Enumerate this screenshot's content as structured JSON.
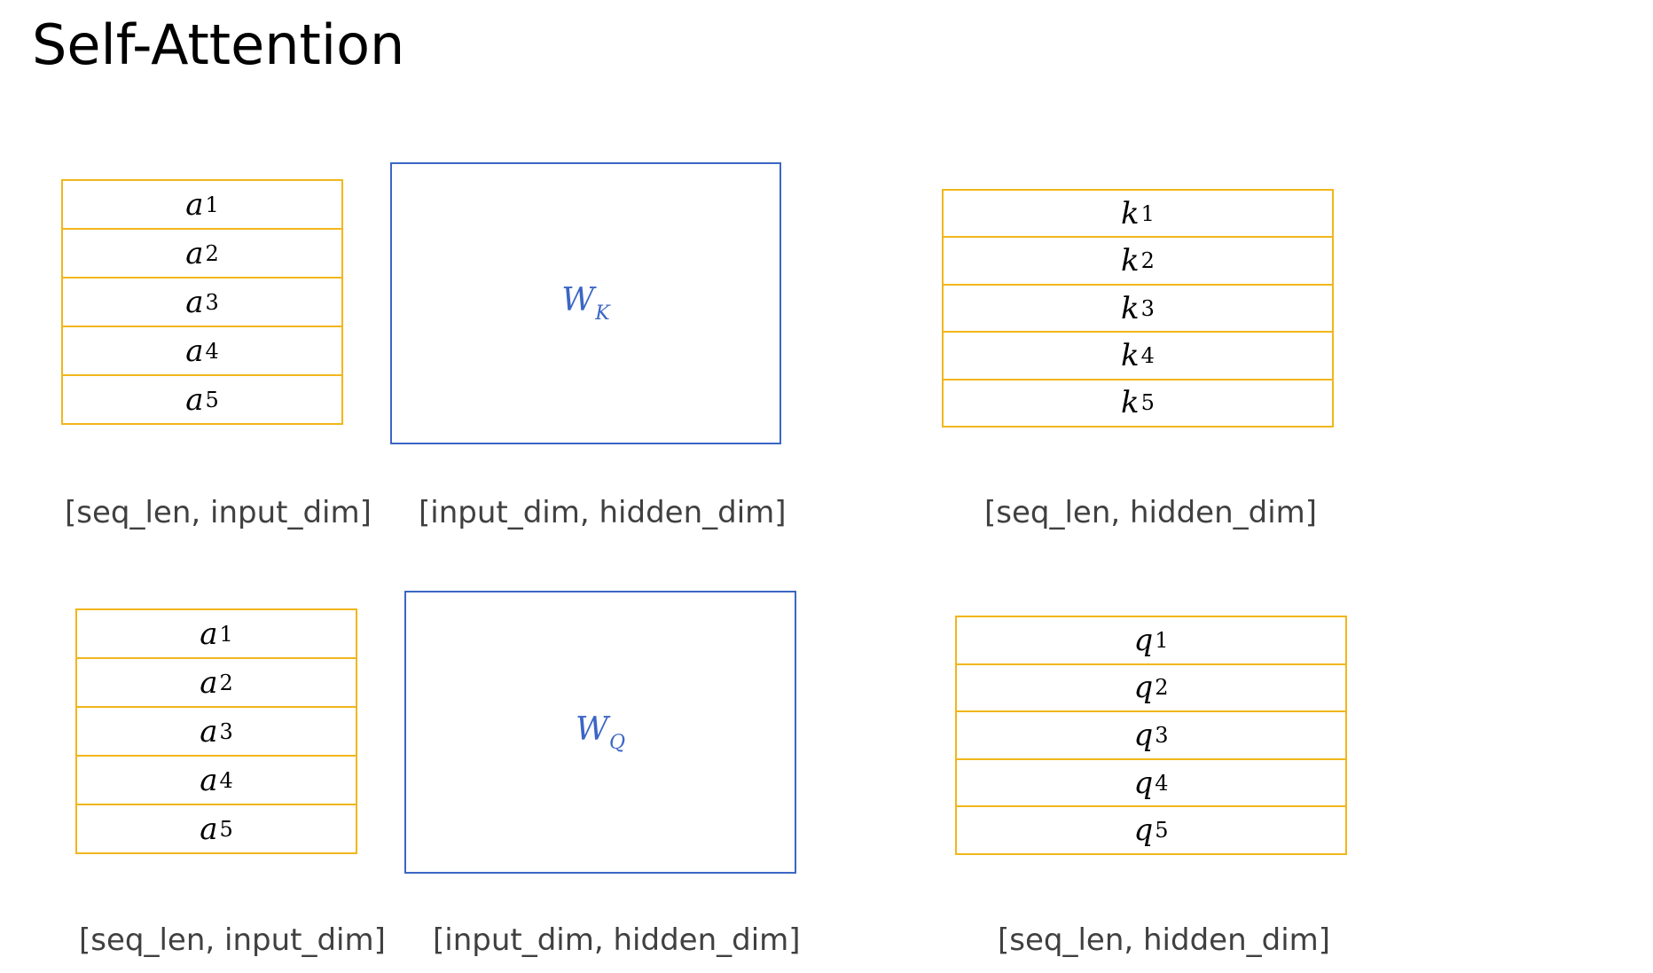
{
  "title": "Self-Attention",
  "rows": [
    {
      "input_cells": [
        {
          "base": "a",
          "sub": "1"
        },
        {
          "base": "a",
          "sub": "2"
        },
        {
          "base": "a",
          "sub": "3"
        },
        {
          "base": "a",
          "sub": "4"
        },
        {
          "base": "a",
          "sub": "5"
        }
      ],
      "weight": {
        "base": "W",
        "sub": "K"
      },
      "output_cells": [
        {
          "base": "k",
          "sub": "1"
        },
        {
          "base": "k",
          "sub": "2"
        },
        {
          "base": "k",
          "sub": "3"
        },
        {
          "base": "k",
          "sub": "4"
        },
        {
          "base": "k",
          "sub": "5"
        }
      ],
      "input_dim_label": "[seq_len, input_dim]",
      "weight_dim_label": "[input_dim, hidden_dim]",
      "output_dim_label": "[seq_len, hidden_dim]"
    },
    {
      "input_cells": [
        {
          "base": "a",
          "sub": "1"
        },
        {
          "base": "a",
          "sub": "2"
        },
        {
          "base": "a",
          "sub": "3"
        },
        {
          "base": "a",
          "sub": "4"
        },
        {
          "base": "a",
          "sub": "5"
        }
      ],
      "weight": {
        "base": "W",
        "sub": "Q"
      },
      "output_cells": [
        {
          "base": "q",
          "sub": "1"
        },
        {
          "base": "q",
          "sub": "2"
        },
        {
          "base": "q",
          "sub": "3"
        },
        {
          "base": "q",
          "sub": "4"
        },
        {
          "base": "q",
          "sub": "5"
        }
      ],
      "input_dim_label": "[seq_len, input_dim]",
      "weight_dim_label": "[input_dim, hidden_dim]",
      "output_dim_label": "[seq_len, hidden_dim]"
    }
  ],
  "colors": {
    "vector_border": "#F2B61B",
    "matrix_border": "#3B66C4"
  }
}
